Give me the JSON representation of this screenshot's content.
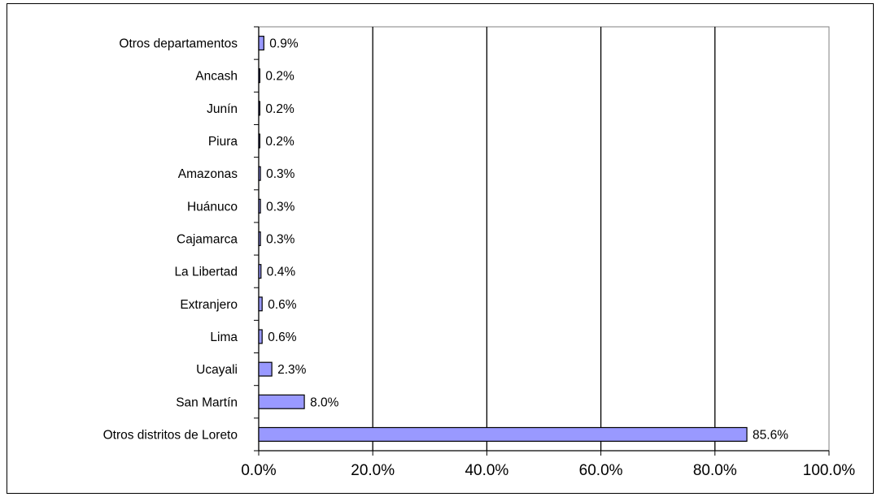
{
  "chart_data": {
    "type": "bar",
    "orientation": "horizontal",
    "title": "",
    "xlabel": "",
    "ylabel": "",
    "categories": [
      "Otros departamentos",
      "Ancash",
      "Junín",
      "Piura",
      "Amazonas",
      "Huánuco",
      "Cajamarca",
      "La Libertad",
      "Extranjero",
      "Lima",
      "Ucayali",
      "San Martín",
      "Otros distritos de Loreto"
    ],
    "values": [
      0.9,
      0.2,
      0.2,
      0.2,
      0.3,
      0.3,
      0.3,
      0.4,
      0.6,
      0.6,
      2.3,
      8.0,
      85.6
    ],
    "value_labels": [
      "0.9%",
      "0.2%",
      "0.2%",
      "0.2%",
      "0.3%",
      "0.3%",
      "0.3%",
      "0.4%",
      "0.6%",
      "0.6%",
      "2.3%",
      "8.0%",
      "85.6%"
    ],
    "xlim": [
      0,
      100
    ],
    "x_ticks": [
      0,
      20,
      40,
      60,
      80,
      100
    ],
    "x_tick_labels": [
      "0.0%",
      "20.0%",
      "40.0%",
      "60.0%",
      "80.0%",
      "100.0%"
    ],
    "grid": "vertical",
    "legend": "none",
    "colors": {
      "bar_fill": "#9999ff",
      "bar_stroke": "#000000",
      "grid": "#000000",
      "plot_border": "#808080",
      "background": "#ffffff"
    }
  }
}
